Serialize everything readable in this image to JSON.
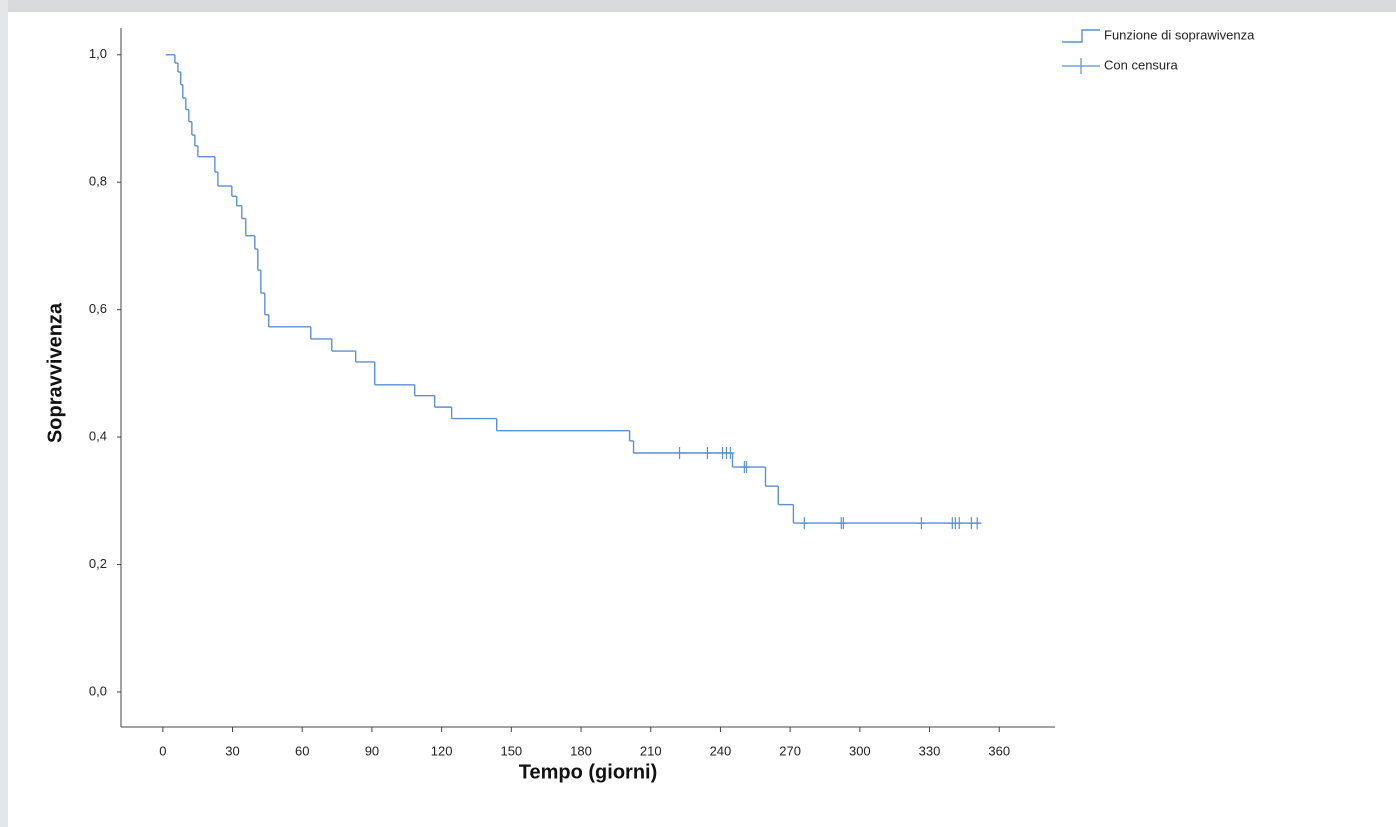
{
  "chart_data": {
    "type": "survival",
    "x_label": "Tempo (giorni)",
    "y_label": "Sopravvivenza",
    "xlim": [
      -18,
      384
    ],
    "ylim": [
      -0.055,
      1.042
    ],
    "xticks": [
      0,
      30,
      60,
      90,
      120,
      150,
      180,
      210,
      240,
      270,
      300,
      330,
      360
    ],
    "yticks": [
      {
        "value": 0,
        "label": "0,0"
      },
      {
        "value": 0.2,
        "label": "0,2"
      },
      {
        "value": 0.4,
        "label": "0,4"
      },
      {
        "value": 0.6,
        "label": "0,6"
      },
      {
        "value": 0.8,
        "label": "0,8"
      },
      {
        "value": 1,
        "label": "1,0"
      }
    ],
    "color": "#5b8fd6",
    "series": [
      {
        "name": "Funzione di soprawivenza",
        "color": "#5b8fd6",
        "x": [
          1.3,
          5.2,
          6.5,
          7.7,
          8.6,
          9.9,
          11.2,
          12.5,
          13.8,
          15.1,
          22.4,
          23.7,
          29.7,
          31.8,
          34.0,
          35.7,
          39.6,
          40.9,
          42.2,
          43.9,
          45.6,
          63.7,
          72.7,
          83.0,
          91.2,
          108.4,
          117.0,
          124.3,
          143.7,
          200.9,
          202.6,
          245.2,
          259.4,
          264.9,
          271.4,
          352.3
        ],
        "values": [
          1,
          0.987,
          0.973,
          0.953,
          0.932,
          0.914,
          0.895,
          0.874,
          0.857,
          0.84,
          0.816,
          0.794,
          0.778,
          0.763,
          0.743,
          0.716,
          0.695,
          0.662,
          0.626,
          0.592,
          0.573,
          0.554,
          0.535,
          0.518,
          0.482,
          0.465,
          0.447,
          0.429,
          0.41,
          0.394,
          0.375,
          0.353,
          0.323,
          0.294,
          0.265,
          0.265
        ]
      },
      {
        "name": "Con censura",
        "color": "#5b8fd6",
        "x": [
          222.4,
          234.4,
          240.9,
          242.6,
          244.3,
          250.3,
          251.2,
          276.1,
          292.0,
          292.9,
          326.5,
          339.8,
          341.1,
          342.8,
          348.0,
          350.5
        ],
        "values": [
          0.375,
          0.375,
          0.375,
          0.375,
          0.375,
          0.353,
          0.353,
          0.265,
          0.265,
          0.265,
          0.265,
          0.265,
          0.265,
          0.265,
          0.265,
          0.265
        ]
      }
    ]
  }
}
